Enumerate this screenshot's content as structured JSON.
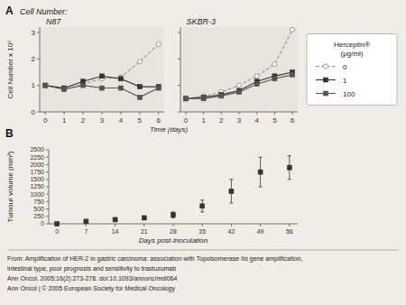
{
  "chart_data": [
    {
      "type": "line",
      "title": "N87",
      "subtitle": "Cell Number:",
      "annotations": [
        "A"
      ],
      "x": [
        0,
        1,
        2,
        3,
        4,
        5,
        6
      ],
      "xlabel": "Time (days)",
      "ylabel": "Cell Number x 10⁵",
      "xlim": [
        -0.3,
        6.3
      ],
      "ylim": [
        0,
        3.2
      ],
      "xticks": [
        0,
        1,
        2,
        3,
        4,
        5,
        6
      ],
      "yticks": [
        0,
        1,
        2,
        3
      ],
      "grid": false,
      "legend": "right",
      "legend_title": "Herceptin®\n(μg/ml)",
      "series": [
        {
          "name": "0",
          "color": "#999999",
          "marker": "circle",
          "line_style": "dashed",
          "values": [
            1.0,
            0.85,
            1.05,
            1.25,
            1.3,
            1.9,
            2.55
          ]
        },
        {
          "name": "1",
          "color": "#333333",
          "marker": "square",
          "line_style": "solid",
          "values": [
            1.0,
            0.9,
            1.15,
            1.35,
            1.25,
            0.95,
            0.95
          ]
        },
        {
          "name": "100",
          "color": "#555555",
          "marker": "square",
          "line_style": "solid",
          "values": [
            1.0,
            0.85,
            1.0,
            0.9,
            0.9,
            0.55,
            0.9
          ]
        }
      ]
    },
    {
      "type": "line",
      "title": "SKBR-3",
      "x": [
        0,
        1,
        2,
        3,
        4,
        5,
        6
      ],
      "xlim": [
        -0.3,
        6.3
      ],
      "ylim": [
        0,
        3.2
      ],
      "xticks": [
        0,
        1,
        2,
        3,
        4,
        5,
        6
      ],
      "yticks": [
        0,
        1,
        2,
        3
      ],
      "grid": false,
      "tick_labels": "x",
      "series": [
        {
          "name": "0",
          "color": "#999999",
          "marker": "circle",
          "line_style": "dashed",
          "values": [
            0.5,
            0.6,
            0.75,
            1.0,
            1.35,
            1.8,
            3.1
          ]
        },
        {
          "name": "1",
          "color": "#333333",
          "marker": "square",
          "line_style": "solid",
          "values": [
            0.5,
            0.55,
            0.65,
            0.8,
            1.15,
            1.35,
            1.5
          ]
        },
        {
          "name": "100",
          "color": "#555555",
          "marker": "square",
          "line_style": "solid",
          "values": [
            0.5,
            0.5,
            0.6,
            0.75,
            1.05,
            1.25,
            1.4
          ]
        }
      ]
    },
    {
      "type": "scatter",
      "annotations": [
        "B"
      ],
      "x": [
        0,
        7,
        14,
        21,
        28,
        35,
        42,
        49,
        56
      ],
      "xlabel": "Days post-inoculation",
      "ylabel": "Tumour volume (mm³)",
      "xlim": [
        -2,
        58
      ],
      "ylim": [
        0,
        2500
      ],
      "xticks": [
        0,
        7,
        14,
        21,
        28,
        35,
        42,
        49,
        56
      ],
      "yticks": [
        0,
        250,
        500,
        750,
        1000,
        1250,
        1500,
        1750,
        2000,
        2250,
        2500
      ],
      "grid": false,
      "series": [
        {
          "color": "#333333",
          "marker": "square",
          "values": [
            0,
            80,
            140,
            200,
            300,
            600,
            1100,
            1750,
            1900
          ],
          "errors": [
            0,
            30,
            40,
            50,
            100,
            200,
            400,
            500,
            400
          ]
        }
      ]
    }
  ],
  "footer": [
    "From: Amplification of HER-2 in gastric carcinoma: association with Topoisomerase IIα gene amplification,",
    "intestinal type, poor prognosis and sensitivity to trastuzumab",
    "Ann Oncol. 2005;16(2):273-278. doi:10.1093/annonc/mdi064",
    "Ann Oncol | © 2005 European Society for Medical Oncology"
  ]
}
